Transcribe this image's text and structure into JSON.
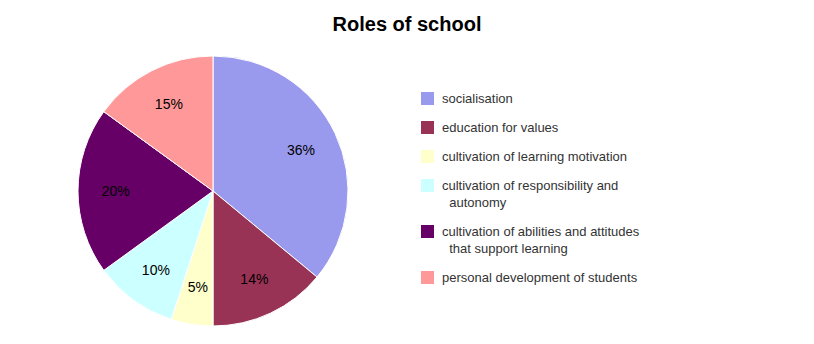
{
  "chart_data": {
    "type": "pie",
    "title": "Roles of school",
    "categories": [
      "socialisation",
      "education for values",
      "cultivation of learning motivation",
      "cultivation of responsibility and\n  autonomy",
      "cultivation of abilities and attitudes\n  that support learning",
      "personal development of students"
    ],
    "values": [
      36,
      14,
      5,
      10,
      20,
      15
    ],
    "value_labels": [
      "36%",
      "14%",
      "5%",
      "10%",
      "20%",
      "15%"
    ],
    "colors": [
      "#9999ee",
      "#993355",
      "#ffffcc",
      "#ccffff",
      "#660066",
      "#ff9999"
    ],
    "data_labels": true,
    "legend": "right"
  }
}
